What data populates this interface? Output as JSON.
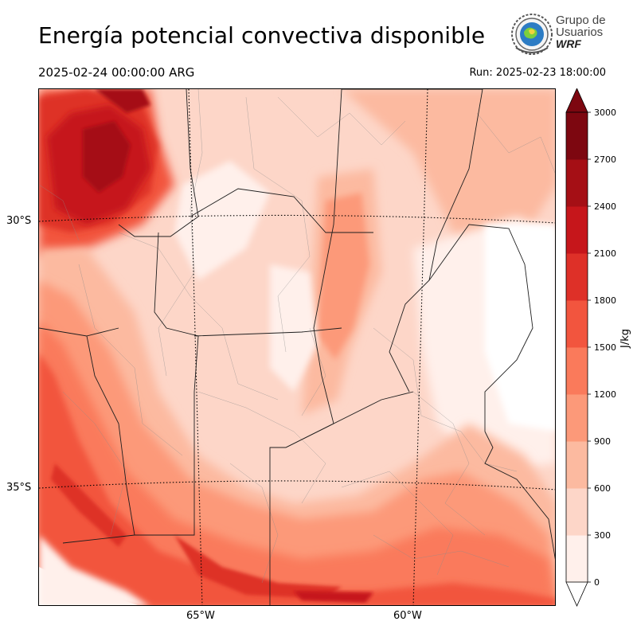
{
  "title": "Energía potencial convectiva disponible",
  "valid_time": "2025-02-24 00:00:00 ARG",
  "run_time": "Run: 2025-02-23 18:00:00",
  "logo": {
    "line1": "Grupo de",
    "line2": "Usuarios",
    "line3": "WRF"
  },
  "map": {
    "latitude_labels": [
      "30°S",
      "35°S"
    ],
    "longitude_labels": [
      "65°W",
      "60°W"
    ]
  },
  "colorbar": {
    "unit": "J/kg",
    "levels": [
      0,
      300,
      600,
      900,
      1200,
      1500,
      1800,
      2100,
      2400,
      2700,
      3000
    ],
    "tick_labels": [
      "0",
      "300",
      "600",
      "900",
      "1200",
      "1500",
      "1800",
      "2100",
      "2400",
      "2700",
      "3000"
    ],
    "colors": [
      "#fff0eb",
      "#fdd6c8",
      "#fcbaa0",
      "#fc9979",
      "#fa7a5b",
      "#f2553e",
      "#de3028",
      "#c6161b",
      "#a50f15",
      "#7d0710"
    ],
    "extend": "both"
  }
}
